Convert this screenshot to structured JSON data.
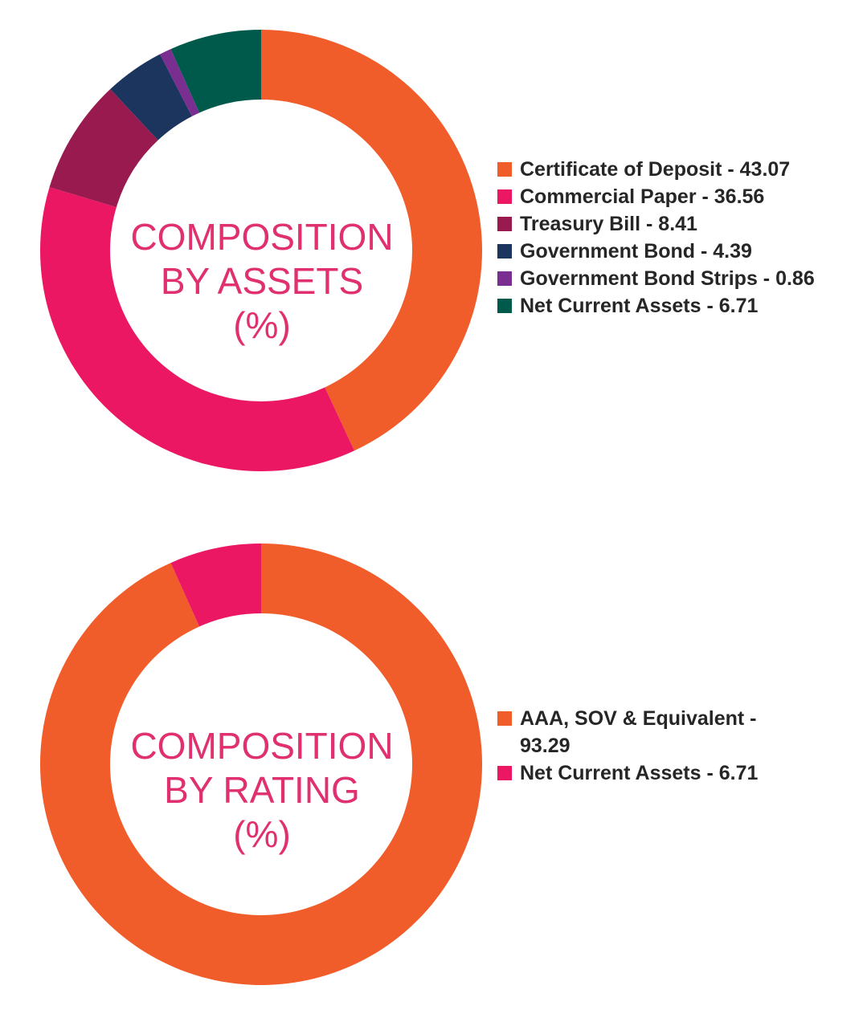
{
  "charts": [
    {
      "id": "assets",
      "title_lines": [
        "COMPOSITION",
        "BY ASSETS",
        "(%)"
      ],
      "legend": [
        {
          "text": "Certificate of Deposit - 43.07"
        },
        {
          "text": "Commercial Paper - 36.56"
        },
        {
          "text": "Treasury Bill - 8.41"
        },
        {
          "text": "Government Bond - 4.39"
        },
        {
          "text": "Government Bond Strips - 0.86"
        },
        {
          "text": "Net Current Assets - 6.71"
        }
      ]
    },
    {
      "id": "rating",
      "title_lines": [
        "COMPOSITION",
        "BY RATING",
        "(%)"
      ],
      "legend": [
        {
          "text": "AAA, SOV & Equivalent - 93.29"
        },
        {
          "text": "Net Current Assets - 6.71"
        }
      ]
    }
  ],
  "chart_data": [
    {
      "type": "pie",
      "title": "COMPOSITION BY ASSETS (%)",
      "categories": [
        "Certificate of Deposit",
        "Commercial Paper",
        "Treasury Bill",
        "Government Bond",
        "Government Bond Strips",
        "Net Current Assets"
      ],
      "values": [
        43.07,
        36.56,
        8.41,
        4.39,
        0.86,
        6.71
      ],
      "colors": [
        "#f15d2a",
        "#eb1763",
        "#991a4e",
        "#1c355e",
        "#7a2e8f",
        "#005a4c"
      ],
      "legend_position": "right"
    },
    {
      "type": "pie",
      "title": "COMPOSITION BY RATING (%)",
      "categories": [
        "AAA, SOV & Equivalent",
        "Net Current Assets"
      ],
      "values": [
        93.29,
        6.71
      ],
      "colors": [
        "#f15d2a",
        "#eb1763"
      ],
      "legend_position": "right"
    }
  ]
}
